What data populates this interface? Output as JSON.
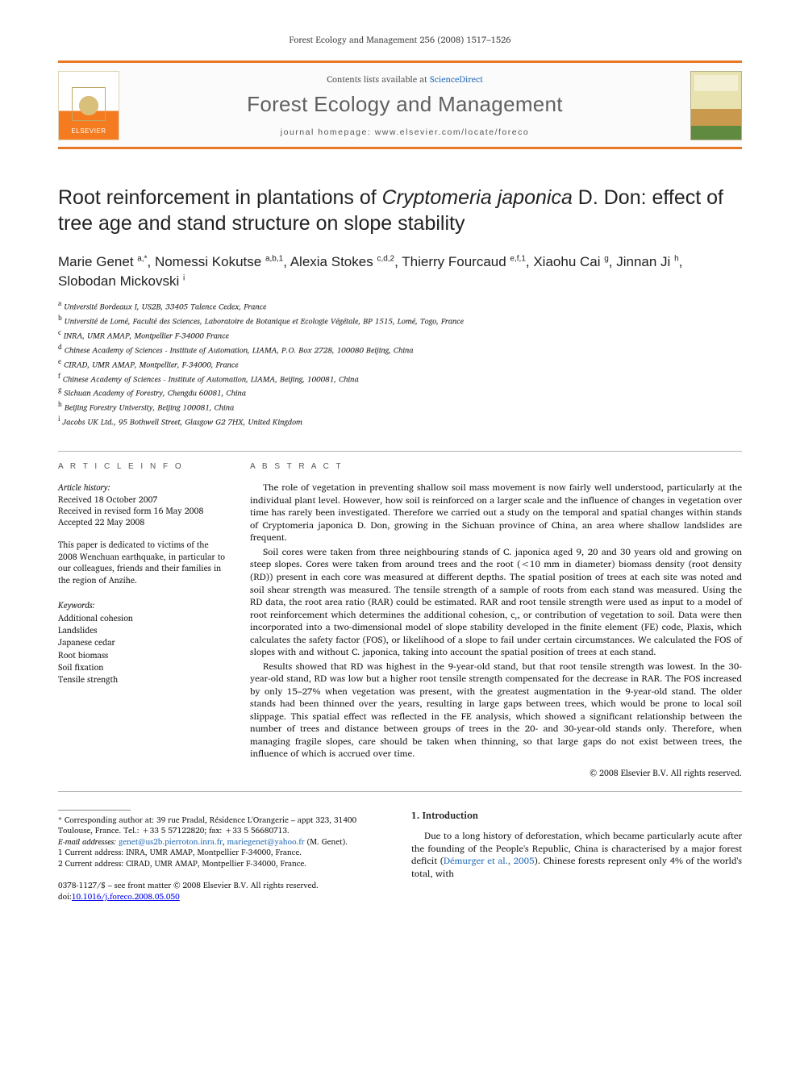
{
  "runhead": "Forest Ecology and Management 256 (2008) 1517–1526",
  "masthead": {
    "publisher": "ELSEVIER",
    "contents_prefix": "Contents lists available at ",
    "contents_link": "ScienceDirect",
    "journal": "Forest Ecology and Management",
    "homepage_prefix": "journal homepage: ",
    "homepage": "www.elsevier.com/locate/foreco"
  },
  "title_a": "Root reinforcement in plantations of ",
  "title_i": "Cryptomeria japonica",
  "title_b": " D. Don: effect of tree age and stand structure on slope stability",
  "authors_html": "Marie Genet <sup>a,*</sup>, Nomessi Kokutse <sup>a,b,1</sup>, Alexia Stokes <sup>c,d,2</sup>, Thierry Fourcaud <sup>e,f,1</sup>, Xiaohu Cai <sup>g</sup>, Jinnan Ji <sup>h</sup>, Slobodan Mickovski <sup>i</sup>",
  "affiliations": [
    "a Université Bordeaux I, US2B, 33405 Talence Cedex, France",
    "b Université de Lomé, Faculté des Sciences, Laboratoire de Botanique et Ecologie Végétale, BP 1515, Lomé, Togo, France",
    "c INRA, UMR AMAP, Montpellier F-34000 France",
    "d Chinese Academy of Sciences - Institute of Automation, LIAMA, P.O. Box 2728, 100080 Beijing, China",
    "e CIRAD, UMR AMAP, Montpellier, F-34000, France",
    "f Chinese Academy of Sciences - Institute of Automation, LIAMA, Beijing, 100081, China",
    "g Sichuan Academy of Forestry, Chengdu 60081, China",
    "h Beijing Forestry University, Beijing 100081, China",
    "i Jacobs UK Ltd., 95 Bothwell Street, Glasgow G2 7HX, United Kingdom"
  ],
  "left": {
    "info_head": "A R T I C L E   I N F O",
    "history_label": "Article history:",
    "history": [
      "Received 18 October 2007",
      "Received in revised form 16 May 2008",
      "Accepted 22 May 2008"
    ],
    "dedication": "This paper is dedicated to victims of the 2008 Wenchuan earthquake, in particular to our colleagues, friends and their families in the region of Anzihe.",
    "kw_label": "Keywords:",
    "keywords": [
      "Additional cohesion",
      "Landslides",
      "Japanese cedar",
      "Root biomass",
      "Soil fixation",
      "Tensile strength"
    ]
  },
  "abstract_head": "A B S T R A C T",
  "abstract": [
    "The role of vegetation in preventing shallow soil mass movement is now fairly well understood, particularly at the individual plant level. However, how soil is reinforced on a larger scale and the influence of changes in vegetation over time has rarely been investigated. Therefore we carried out a study on the temporal and spatial changes within stands of Cryptomeria japonica D. Don, growing in the Sichuan province of China, an area where shallow landslides are frequent.",
    "Soil cores were taken from three neighbouring stands of C. japonica aged 9, 20 and 30 years old and growing on steep slopes. Cores were taken from around trees and the root (<10 mm in diameter) biomass density (root density (RD)) present in each core was measured at different depths. The spatial position of trees at each site was noted and soil shear strength was measured. The tensile strength of a sample of roots from each stand was measured. Using the RD data, the root area ratio (RAR) could be estimated. RAR and root tensile strength were used as input to a model of root reinforcement which determines the additional cohesion, cᵣ, or contribution of vegetation to soil. Data were then incorporated into a two-dimensional model of slope stability developed in the finite element (FE) code, Plaxis, which calculates the safety factor (FOS), or likelihood of a slope to fail under certain circumstances. We calculated the FOS of slopes with and without C. japonica, taking into account the spatial position of trees at each stand.",
    "Results showed that RD was highest in the 9-year-old stand, but that root tensile strength was lowest. In the 30-year-old stand, RD was low but a higher root tensile strength compensated for the decrease in RAR. The FOS increased by only 15–27% when vegetation was present, with the greatest augmentation in the 9-year-old stand. The older stands had been thinned over the years, resulting in large gaps between trees, which would be prone to local soil slippage. This spatial effect was reflected in the FE analysis, which showed a significant relationship between the number of trees and distance between groups of trees in the 20- and 30-year-old stands only. Therefore, when managing fragile slopes, care should be taken when thinning, so that large gaps do not exist between trees, the influence of which is accrued over time."
  ],
  "copyright": "© 2008 Elsevier B.V. All rights reserved.",
  "footnotes": {
    "corr": "* Corresponding author at: 39 rue Pradal, Résidence L'Orangerie – appt 323, 31400 Toulouse, France. Tel.: +33 5 57122820; fax: +33 5 56680713.",
    "email_label": "E-mail addresses: ",
    "email1": "genet@us2b.pierroton.inra.fr",
    "email_sep": ", ",
    "email2": "mariegenet@yahoo.fr",
    "email_tail": " (M. Genet).",
    "n1": "1 Current address: INRA, UMR AMAP, Montpellier F-34000, France.",
    "n2": "2 Current address: CIRAD, UMR AMAP, Montpellier F-34000, France."
  },
  "intro": {
    "head": "1.  Introduction",
    "p1a": "Due to a long history of deforestation, which became particularly acute after the founding of the People's Republic, China is characterised by a major forest deficit (",
    "p1link": "Démurger et al., 2005",
    "p1b": "). Chinese forests represent only 4% of the world's total, with"
  },
  "footline": "0378-1127/$ – see front matter © 2008 Elsevier B.V. All rights reserved.",
  "doi_label": "doi:",
  "doi": "10.1016/j.foreco.2008.05.050",
  "colors": {
    "rule": "#e97826",
    "link": "#2a6fb6",
    "text": "#1a1a1a",
    "muted": "#555555",
    "background": "#ffffff"
  }
}
